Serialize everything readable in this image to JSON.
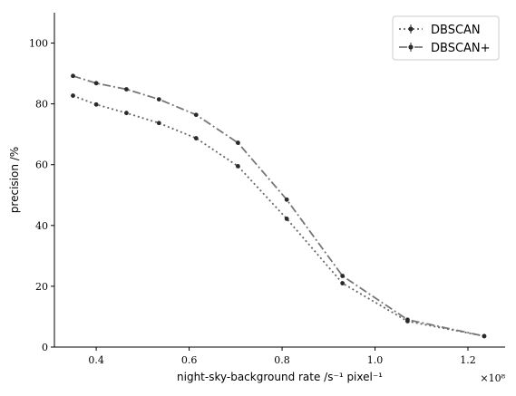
{
  "chart_data": {
    "type": "line",
    "xlabel": "night-sky-background rate /s⁻¹ pixel⁻¹",
    "ylabel": "precision /%",
    "offset_text": "×10⁸",
    "x_scale_factor": 100000000,
    "xlim": [
      0.31,
      1.28
    ],
    "ylim": [
      0,
      110
    ],
    "xticks": [
      0.4,
      0.6,
      0.8,
      1.0,
      1.2
    ],
    "xtick_labels": [
      "0.4",
      "0.6",
      "0.8",
      "1.0",
      "1.2"
    ],
    "yticks": [
      0,
      20,
      40,
      60,
      80,
      100
    ],
    "ytick_labels": [
      "0",
      "20",
      "40",
      "60",
      "80",
      "100"
    ],
    "grid": false,
    "legend_position": "top-right",
    "series": [
      {
        "name": "DBSCAN",
        "linestyle": "dotted",
        "color": "#666666",
        "x": [
          0.35,
          0.4,
          0.465,
          0.535,
          0.615,
          0.705,
          0.81,
          0.93,
          1.07,
          1.235
        ],
        "y": [
          82.7,
          79.8,
          77.0,
          73.7,
          68.7,
          59.5,
          42.2,
          21.0,
          8.5,
          3.6
        ]
      },
      {
        "name": "DBSCAN+",
        "linestyle": "dashdot",
        "color": "#777777",
        "x": [
          0.35,
          0.4,
          0.465,
          0.535,
          0.615,
          0.705,
          0.81,
          0.93,
          1.07,
          1.235
        ],
        "y": [
          89.2,
          86.8,
          84.8,
          81.5,
          76.4,
          67.2,
          48.5,
          23.4,
          9.0,
          3.6
        ]
      }
    ]
  }
}
